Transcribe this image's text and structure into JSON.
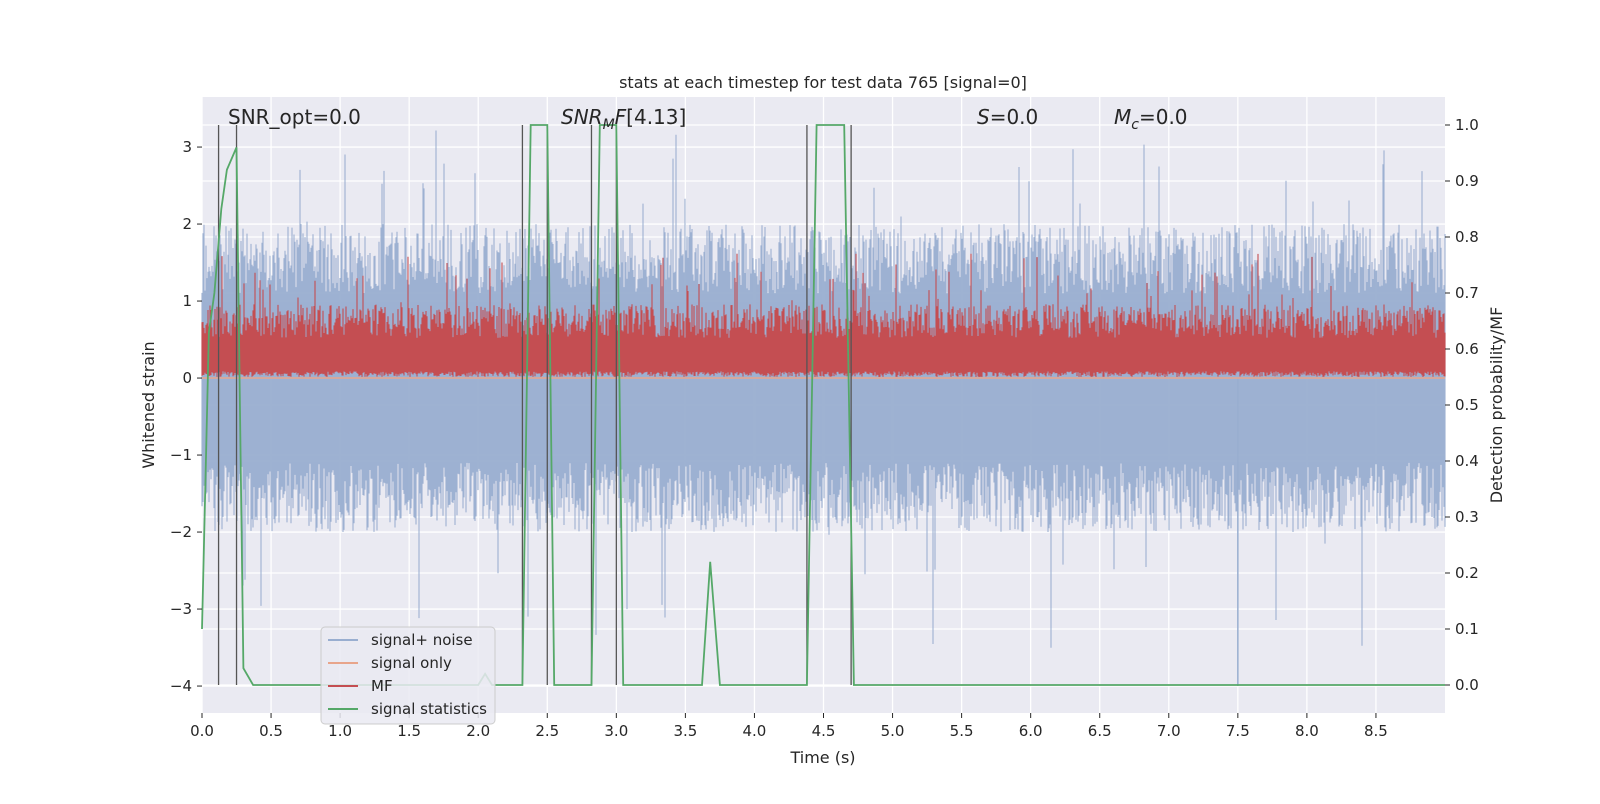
{
  "chart_data": {
    "type": "line",
    "title": "stats at each timestep for test data 765 [signal=0]",
    "xlabel": "Time (s)",
    "ylabel": "Whitened strain",
    "y2label": "Detection probability/MF",
    "xlim": [
      0.0,
      9.0
    ],
    "ylim": [
      -4.35,
      3.65
    ],
    "y2lim": [
      -0.05,
      1.05
    ],
    "x_ticks": [
      "0.0",
      "0.5",
      "1.0",
      "1.5",
      "2.0",
      "2.5",
      "3.0",
      "3.5",
      "4.0",
      "4.5",
      "5.0",
      "5.5",
      "6.0",
      "6.5",
      "7.0",
      "7.5",
      "8.0",
      "8.5"
    ],
    "y_ticks": [
      "3",
      "2",
      "1",
      "0",
      "−1",
      "−2",
      "−3",
      "−4"
    ],
    "y2_ticks": [
      "1.0",
      "0.9",
      "0.8",
      "0.7",
      "0.6",
      "0.5",
      "0.4",
      "0.3",
      "0.2",
      "0.1",
      "0.0"
    ],
    "grid": true,
    "legend_position": "lower-left",
    "annotations": {
      "snr_opt": "SNR_opt=0.0",
      "snr_mf": "[4.13]",
      "s": "=0.0",
      "mc": "=0.0"
    },
    "series": [
      {
        "name": "signal+ noise",
        "color": "#99aed0",
        "axis": "left",
        "kind": "noise",
        "envelope_y": [
          -2.0,
          2.0
        ],
        "peak_y": [
          -4.0,
          3.3
        ]
      },
      {
        "name": "signal only",
        "color": "#e8a58b",
        "axis": "left",
        "kind": "flat",
        "y": 0.0
      },
      {
        "name": "MF",
        "color": "#c44e52",
        "axis": "right",
        "kind": "noise",
        "envelope_y2": [
          0.55,
          0.65
        ],
        "peak_y2": [
          0.55,
          0.77
        ]
      },
      {
        "name": "signal statistics",
        "color": "#55a868",
        "axis": "right",
        "x": [
          0.0,
          0.05,
          0.09,
          0.14,
          0.18,
          0.25,
          0.3,
          0.37,
          2.0,
          2.05,
          2.1,
          2.32,
          2.38,
          2.5,
          2.55,
          2.6,
          2.82,
          2.88,
          3.0,
          3.05,
          3.1,
          3.62,
          3.68,
          3.75,
          4.38,
          4.45,
          4.65,
          4.72,
          9.0
        ],
        "y": [
          0.1,
          0.63,
          0.7,
          0.85,
          0.92,
          0.96,
          0.03,
          0.0,
          0.0,
          0.02,
          0.0,
          0.0,
          1.0,
          1.0,
          0.0,
          0.0,
          0.0,
          1.0,
          1.0,
          0.0,
          0.0,
          0.0,
          0.22,
          0.0,
          0.0,
          1.0,
          1.0,
          0.0,
          0.0
        ]
      }
    ],
    "vertical_lines_x": [
      0.12,
      0.25,
      2.32,
      2.5,
      2.82,
      3.0,
      4.38,
      4.7
    ]
  }
}
